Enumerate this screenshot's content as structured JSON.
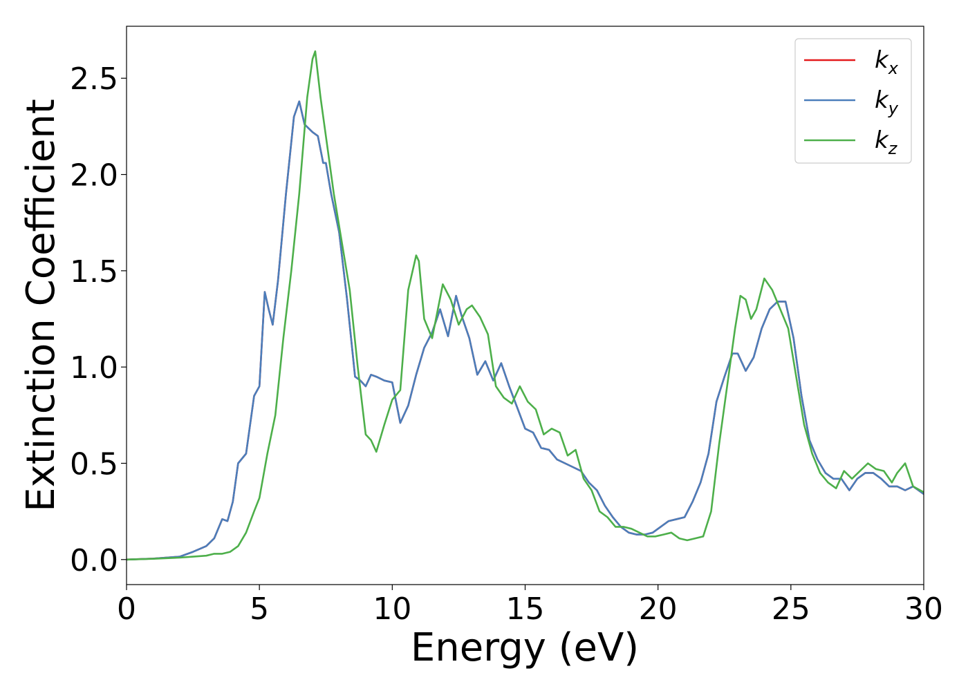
{
  "chart_data": {
    "type": "line",
    "xlabel": "Energy (eV)",
    "ylabel": "Extinction Coefficient",
    "xlim": [
      0,
      30
    ],
    "ylim": [
      -0.13,
      2.77
    ],
    "xticks": [
      0,
      5,
      10,
      15,
      20,
      25,
      30
    ],
    "yticks": [
      0.0,
      0.5,
      1.0,
      1.5,
      2.0,
      2.5
    ],
    "xtick_labels": [
      "0",
      "5",
      "10",
      "15",
      "20",
      "25",
      "30"
    ],
    "ytick_labels": [
      "0.0",
      "0.5",
      "1.0",
      "1.5",
      "2.0",
      "2.5"
    ],
    "grid": false,
    "legend_position": "top-right",
    "series": [
      {
        "name": "kx",
        "base": "k",
        "sub": "x",
        "color": "#e41a1c",
        "x": [
          0,
          1,
          2,
          2.5,
          3,
          3.3,
          3.6,
          3.8,
          4,
          4.2,
          4.5,
          4.8,
          5,
          5.2,
          5.35,
          5.5,
          5.7,
          6,
          6.3,
          6.5,
          6.7,
          7,
          7.2,
          7.4,
          7.5,
          7.7,
          8,
          8.3,
          8.6,
          8.8,
          9,
          9.2,
          9.4,
          9.7,
          10,
          10.3,
          10.6,
          10.9,
          11.2,
          11.5,
          11.8,
          12.1,
          12.4,
          12.6,
          12.9,
          13.2,
          13.5,
          13.8,
          14.1,
          14.4,
          14.7,
          15,
          15.3,
          15.6,
          15.9,
          16.2,
          16.5,
          16.8,
          17.1,
          17.4,
          17.7,
          18,
          18.3,
          18.6,
          18.9,
          19.2,
          19.5,
          19.8,
          20.1,
          20.4,
          20.7,
          21,
          21.3,
          21.6,
          21.9,
          22.2,
          22.5,
          22.8,
          23,
          23.3,
          23.6,
          23.9,
          24.2,
          24.5,
          24.8,
          25.1,
          25.4,
          25.7,
          26,
          26.3,
          26.6,
          26.9,
          27.2,
          27.5,
          27.8,
          28.1,
          28.4,
          28.7,
          29,
          29.3,
          29.6,
          30
        ],
        "y": [
          0,
          0.005,
          0.015,
          0.04,
          0.07,
          0.11,
          0.21,
          0.2,
          0.3,
          0.5,
          0.55,
          0.85,
          0.9,
          1.39,
          1.3,
          1.22,
          1.45,
          1.9,
          2.3,
          2.38,
          2.26,
          2.22,
          2.2,
          2.06,
          2.06,
          1.9,
          1.7,
          1.35,
          0.95,
          0.93,
          0.9,
          0.96,
          0.95,
          0.93,
          0.92,
          0.71,
          0.8,
          0.96,
          1.1,
          1.18,
          1.3,
          1.16,
          1.37,
          1.27,
          1.15,
          0.96,
          1.03,
          0.93,
          1.02,
          0.9,
          0.79,
          0.68,
          0.66,
          0.58,
          0.57,
          0.52,
          0.5,
          0.48,
          0.46,
          0.4,
          0.36,
          0.28,
          0.22,
          0.17,
          0.14,
          0.13,
          0.13,
          0.14,
          0.17,
          0.2,
          0.21,
          0.22,
          0.3,
          0.4,
          0.55,
          0.82,
          0.95,
          1.07,
          1.07,
          0.98,
          1.05,
          1.2,
          1.3,
          1.34,
          1.34,
          1.15,
          0.85,
          0.62,
          0.52,
          0.45,
          0.42,
          0.42,
          0.36,
          0.42,
          0.45,
          0.45,
          0.42,
          0.38,
          0.38,
          0.36,
          0.38,
          0.34
        ]
      },
      {
        "name": "ky",
        "base": "k",
        "sub": "y",
        "color": "#4a7ebb",
        "x": [
          0,
          1,
          2,
          2.5,
          3,
          3.3,
          3.6,
          3.8,
          4,
          4.2,
          4.5,
          4.8,
          5,
          5.2,
          5.35,
          5.5,
          5.7,
          6,
          6.3,
          6.5,
          6.7,
          7,
          7.2,
          7.4,
          7.5,
          7.7,
          8,
          8.3,
          8.6,
          8.8,
          9,
          9.2,
          9.4,
          9.7,
          10,
          10.3,
          10.6,
          10.9,
          11.2,
          11.5,
          11.8,
          12.1,
          12.4,
          12.6,
          12.9,
          13.2,
          13.5,
          13.8,
          14.1,
          14.4,
          14.7,
          15,
          15.3,
          15.6,
          15.9,
          16.2,
          16.5,
          16.8,
          17.1,
          17.4,
          17.7,
          18,
          18.3,
          18.6,
          18.9,
          19.2,
          19.5,
          19.8,
          20.1,
          20.4,
          20.7,
          21,
          21.3,
          21.6,
          21.9,
          22.2,
          22.5,
          22.8,
          23,
          23.3,
          23.6,
          23.9,
          24.2,
          24.5,
          24.8,
          25.1,
          25.4,
          25.7,
          26,
          26.3,
          26.6,
          26.9,
          27.2,
          27.5,
          27.8,
          28.1,
          28.4,
          28.7,
          29,
          29.3,
          29.6,
          30
        ],
        "y": [
          0,
          0.005,
          0.015,
          0.04,
          0.07,
          0.11,
          0.21,
          0.2,
          0.3,
          0.5,
          0.55,
          0.85,
          0.9,
          1.39,
          1.3,
          1.22,
          1.45,
          1.9,
          2.3,
          2.38,
          2.26,
          2.22,
          2.2,
          2.06,
          2.06,
          1.9,
          1.7,
          1.35,
          0.95,
          0.93,
          0.9,
          0.96,
          0.95,
          0.93,
          0.92,
          0.71,
          0.8,
          0.96,
          1.1,
          1.18,
          1.3,
          1.16,
          1.37,
          1.27,
          1.15,
          0.96,
          1.03,
          0.93,
          1.02,
          0.9,
          0.79,
          0.68,
          0.66,
          0.58,
          0.57,
          0.52,
          0.5,
          0.48,
          0.46,
          0.4,
          0.36,
          0.28,
          0.22,
          0.17,
          0.14,
          0.13,
          0.13,
          0.14,
          0.17,
          0.2,
          0.21,
          0.22,
          0.3,
          0.4,
          0.55,
          0.82,
          0.95,
          1.07,
          1.07,
          0.98,
          1.05,
          1.2,
          1.3,
          1.34,
          1.34,
          1.15,
          0.85,
          0.62,
          0.52,
          0.45,
          0.42,
          0.42,
          0.36,
          0.42,
          0.45,
          0.45,
          0.42,
          0.38,
          0.38,
          0.36,
          0.38,
          0.34
        ]
      },
      {
        "name": "kz",
        "base": "k",
        "sub": "z",
        "color": "#4daf4a",
        "x": [
          0,
          1,
          2,
          2.5,
          3,
          3.3,
          3.6,
          3.9,
          4.2,
          4.5,
          4.8,
          5,
          5.3,
          5.6,
          5.9,
          6.2,
          6.5,
          6.8,
          7,
          7.1,
          7.3,
          7.5,
          7.8,
          8.1,
          8.4,
          8.7,
          9,
          9.2,
          9.4,
          9.7,
          10,
          10.3,
          10.6,
          10.9,
          11,
          11.2,
          11.5,
          11.9,
          12.2,
          12.5,
          12.8,
          13,
          13.3,
          13.6,
          13.9,
          14.2,
          14.5,
          14.8,
          15.1,
          15.4,
          15.7,
          16,
          16.3,
          16.6,
          16.9,
          17.2,
          17.5,
          17.8,
          18.1,
          18.4,
          18.7,
          19,
          19.3,
          19.6,
          19.9,
          20.2,
          20.5,
          20.8,
          21.1,
          21.4,
          21.7,
          22,
          22.3,
          22.6,
          22.9,
          23.1,
          23.3,
          23.5,
          23.7,
          24,
          24.3,
          24.6,
          24.9,
          25.2,
          25.5,
          25.8,
          26.1,
          26.4,
          26.7,
          27,
          27.3,
          27.6,
          27.9,
          28.2,
          28.5,
          28.8,
          29,
          29.3,
          29.6,
          30
        ],
        "y": [
          0,
          0.004,
          0.01,
          0.015,
          0.02,
          0.03,
          0.03,
          0.04,
          0.07,
          0.14,
          0.25,
          0.32,
          0.55,
          0.75,
          1.15,
          1.5,
          1.9,
          2.4,
          2.6,
          2.64,
          2.4,
          2.2,
          1.9,
          1.65,
          1.4,
          1.0,
          0.65,
          0.62,
          0.56,
          0.7,
          0.83,
          0.88,
          1.4,
          1.58,
          1.55,
          1.25,
          1.15,
          1.43,
          1.35,
          1.22,
          1.3,
          1.32,
          1.26,
          1.17,
          0.9,
          0.84,
          0.81,
          0.9,
          0.82,
          0.78,
          0.65,
          0.68,
          0.66,
          0.54,
          0.57,
          0.42,
          0.36,
          0.25,
          0.22,
          0.17,
          0.17,
          0.16,
          0.14,
          0.12,
          0.12,
          0.13,
          0.14,
          0.11,
          0.1,
          0.11,
          0.12,
          0.25,
          0.6,
          0.9,
          1.2,
          1.37,
          1.35,
          1.25,
          1.3,
          1.46,
          1.4,
          1.3,
          1.2,
          0.95,
          0.7,
          0.55,
          0.45,
          0.4,
          0.37,
          0.46,
          0.42,
          0.46,
          0.5,
          0.47,
          0.46,
          0.4,
          0.45,
          0.5,
          0.38,
          0.35
        ]
      }
    ]
  }
}
